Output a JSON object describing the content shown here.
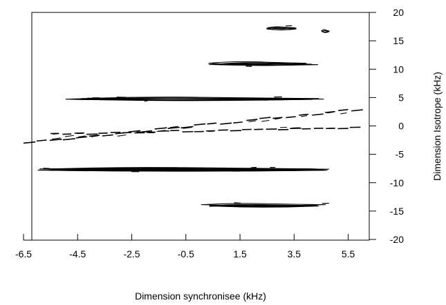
{
  "chart_data": {
    "type": "contour",
    "title": "",
    "xlabel": "Dimension synchronisee (kHz)",
    "ylabel": "Dimension Isotrope (kHz)",
    "xlim": [
      -6.5,
      6.2
    ],
    "ylim": [
      -20,
      20
    ],
    "x_ticks": [
      "-6.5",
      "-4.5",
      "-2.5",
      "-0.5",
      "1.5",
      "3.5",
      "5.5"
    ],
    "y_ticks": [
      "20",
      "15",
      "10",
      "5",
      "0",
      "-5",
      "-10",
      "-15",
      "-20"
    ],
    "y_axis_position": "right",
    "grid": false,
    "legend": "none",
    "line_color": "#000000",
    "features": [
      {
        "label": "ridge",
        "x_range": [
          2.4,
          3.6
        ],
        "y": 17.2
      },
      {
        "label": "ridge",
        "x_range": [
          4.5,
          4.8
        ],
        "y": 16.7
      },
      {
        "label": "ridge",
        "x_range": [
          0.3,
          4.5
        ],
        "y": 10.9
      },
      {
        "label": "ridge",
        "x_range": [
          -5.0,
          4.6
        ],
        "y": 4.8
      },
      {
        "label": "ridge",
        "x_range": [
          -6.0,
          4.8
        ],
        "y": -7.7
      },
      {
        "label": "ridge",
        "x_range": [
          0.0,
          4.8
        ],
        "y": -14.0
      },
      {
        "label": "diagonal",
        "x_start": -6.5,
        "y_start": -3.0,
        "x_end": 6.1,
        "y_end": 3.0
      },
      {
        "label": "diagonal",
        "x_start": -5.5,
        "y_start": -1.5,
        "x_end": 6.0,
        "y_end": -0.2
      }
    ]
  }
}
